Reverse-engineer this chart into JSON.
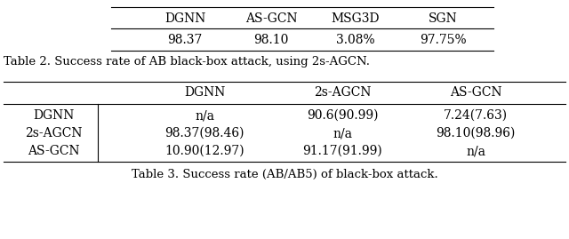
{
  "table2": {
    "caption": "Table 2. Success rate of AB black-box attack, using 2s-AGCN.",
    "headers": [
      "DGNN",
      "AS-GCN",
      "MSG3D",
      "SGN"
    ],
    "values": [
      "98.37",
      "98.10",
      "3.08%",
      "97.75%"
    ]
  },
  "table3": {
    "caption": "Table 3. Success rate (AB/AB5) of black-box attack.",
    "col_headers": [
      "DGNN",
      "2s-AGCN",
      "AS-GCN"
    ],
    "rows": [
      [
        "DGNN",
        "n/a",
        "90.6(90.99)",
        "7.24(7.63)"
      ],
      [
        "2s-AGCN",
        "98.37(98.46)",
        "n/a",
        "98.10(98.96)"
      ],
      [
        "AS-GCN",
        "10.90(12.97)",
        "91.17(91.99)",
        "n/a"
      ]
    ]
  },
  "bg_color": "#ffffff",
  "text_color": "#000000",
  "font_size": 10.0,
  "caption_font_size": 9.5,
  "fig_width": 640,
  "fig_height": 269
}
